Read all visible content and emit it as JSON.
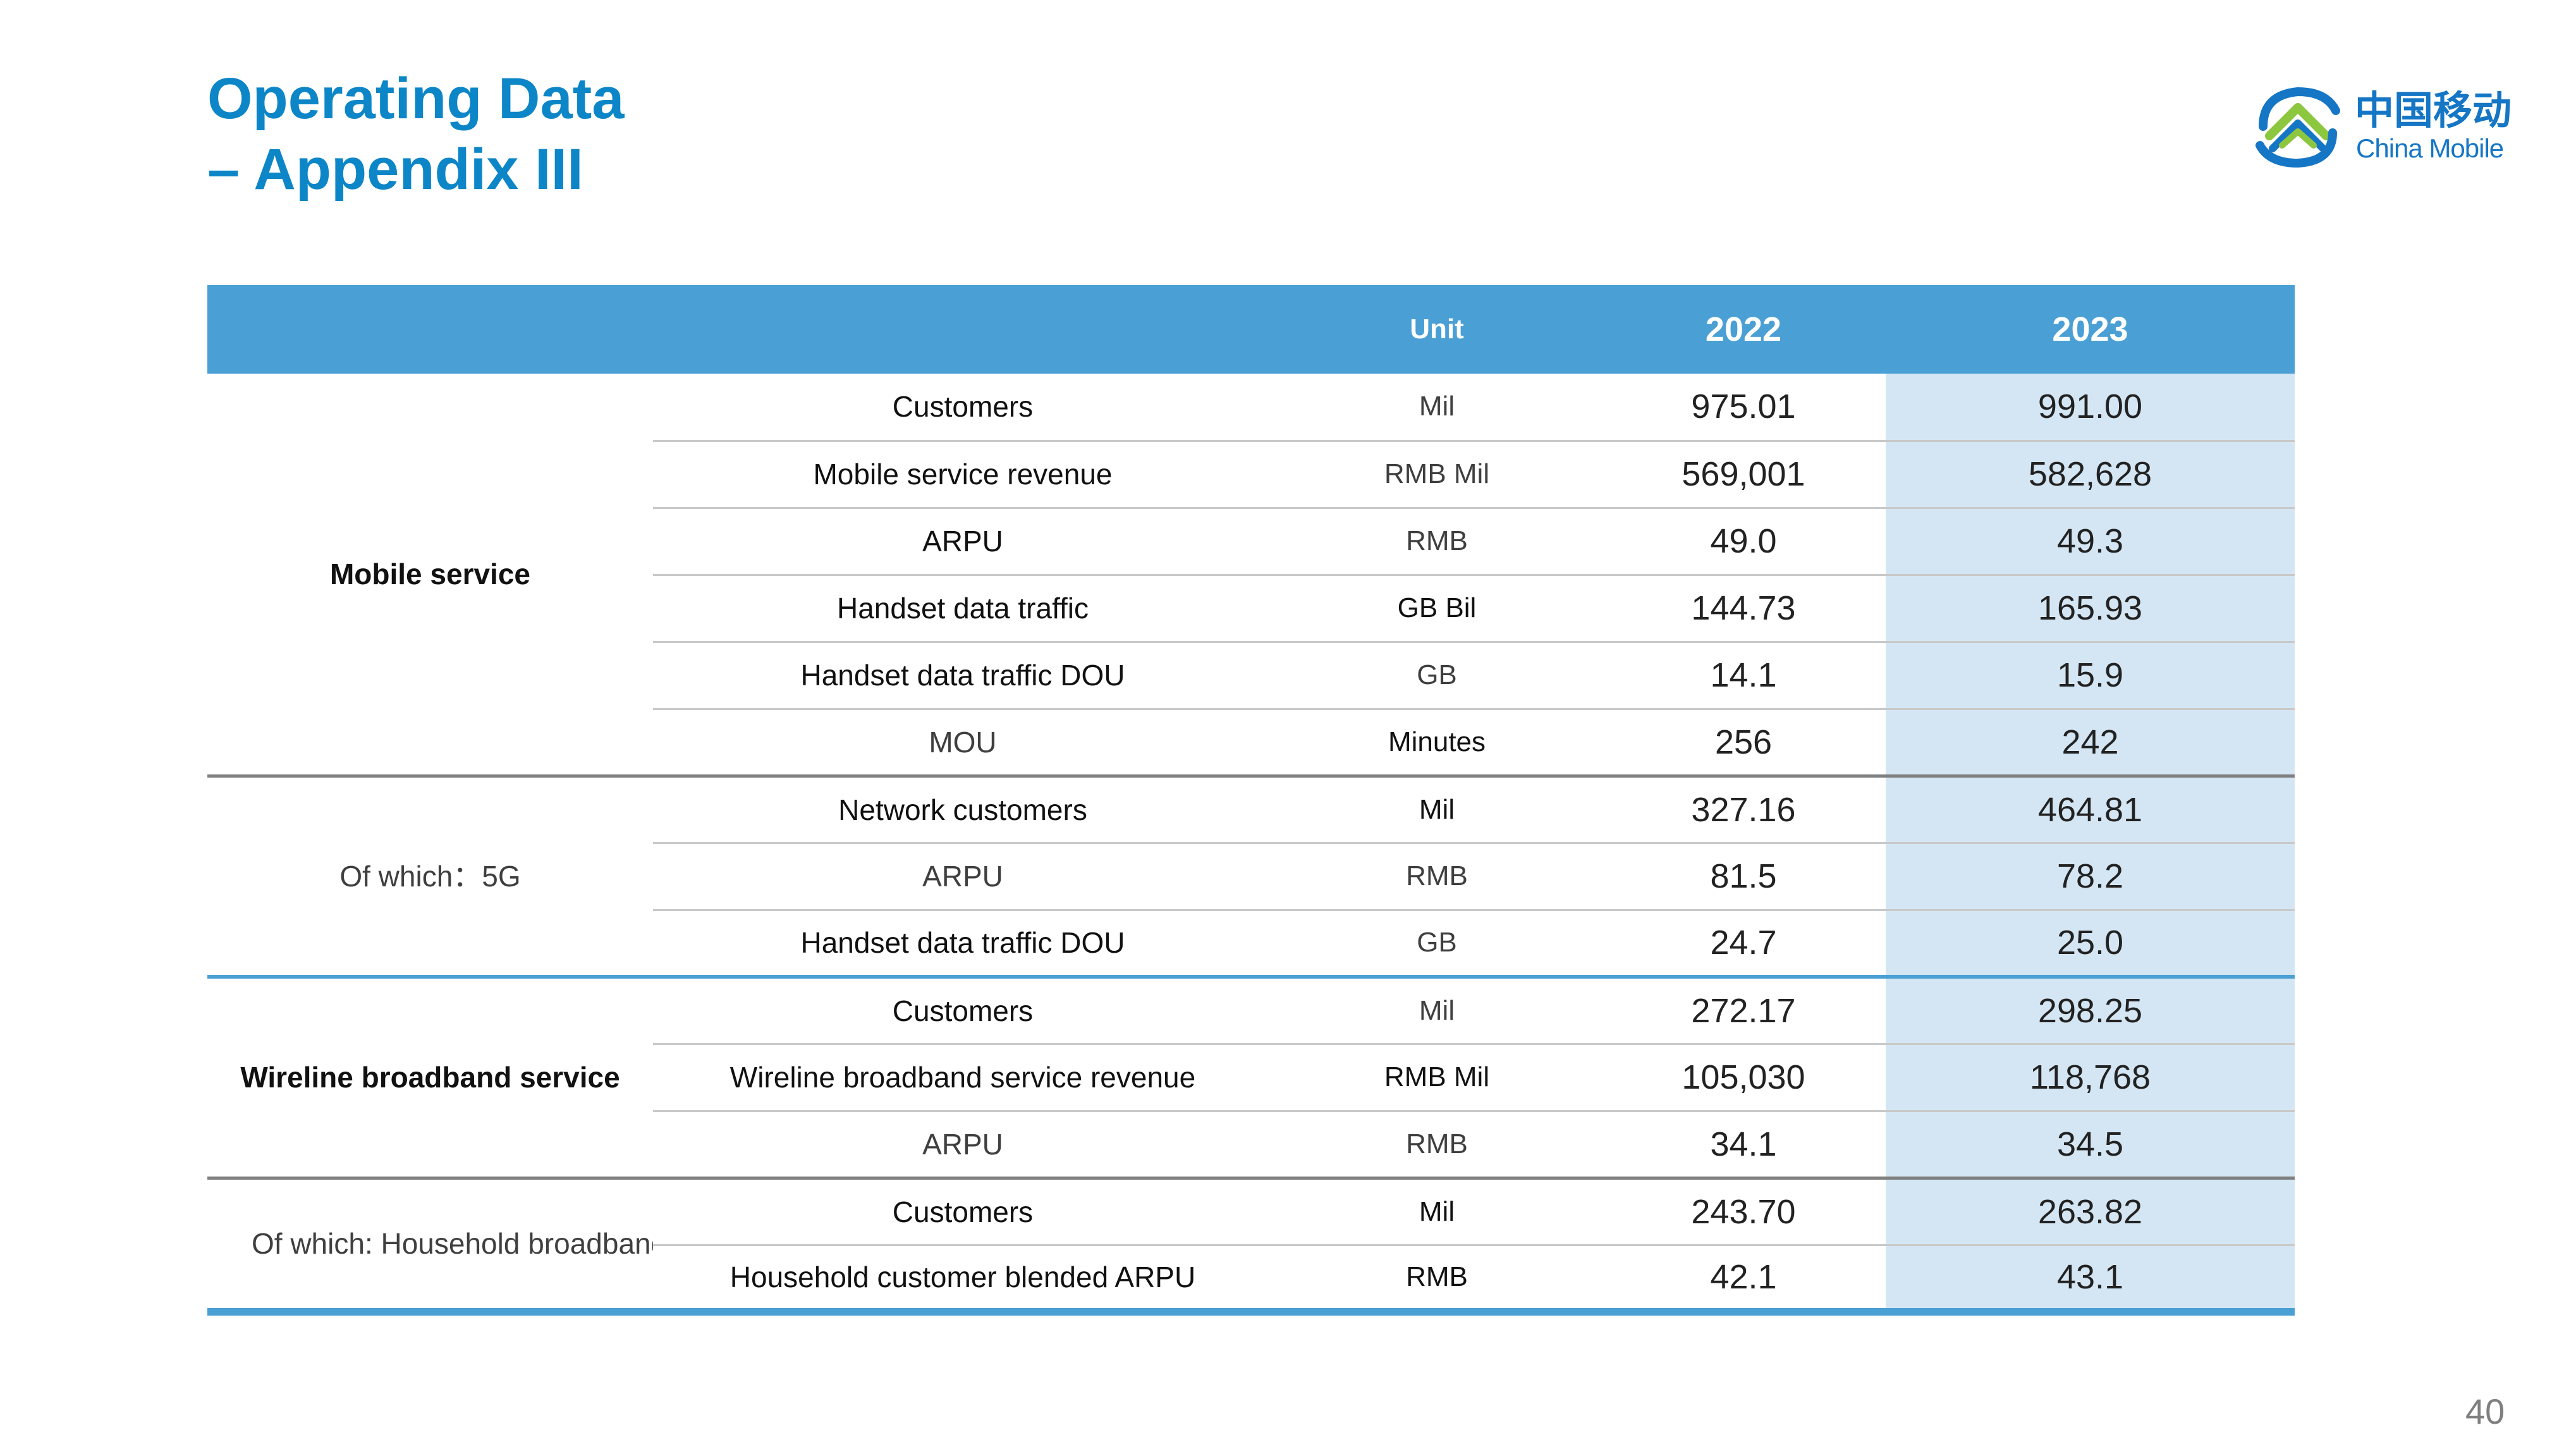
{
  "title": {
    "line1": "Operating Data",
    "line2": "– Appendix III"
  },
  "logo": {
    "cn": "中国移动",
    "en": "China Mobile",
    "colors": {
      "blue": "#1576C5",
      "green": "#8DC63F"
    }
  },
  "table": {
    "headers": {
      "unit": "Unit",
      "y2022": "2022",
      "y2023": "2023"
    },
    "groups": {
      "mobile": "Mobile service",
      "fiveg": "Of which：5G",
      "wireline": "Wireline broadband service",
      "household": "Of which: Household broadband"
    },
    "rows": [
      {
        "metric": "Customers",
        "unit": "Mil",
        "y2022": "975.01",
        "y2023": "991.00"
      },
      {
        "metric": "Mobile service revenue",
        "unit": "RMB Mil",
        "y2022": "569,001",
        "y2023": "582,628"
      },
      {
        "metric": "ARPU",
        "unit": "RMB",
        "y2022": "49.0",
        "y2023": "49.3"
      },
      {
        "metric": "Handset data traffic",
        "unit": "GB Bil",
        "y2022": "144.73",
        "y2023": "165.93"
      },
      {
        "metric": "Handset data traffic DOU",
        "unit": "GB",
        "y2022": "14.1",
        "y2023": "15.9"
      },
      {
        "metric": "MOU",
        "unit": "Minutes",
        "y2022": "256",
        "y2023": "242"
      },
      {
        "metric": "Network customers",
        "unit": "Mil",
        "y2022": "327.16",
        "y2023": "464.81"
      },
      {
        "metric": "ARPU",
        "unit": "RMB",
        "y2022": "81.5",
        "y2023": "78.2"
      },
      {
        "metric": "Handset data traffic DOU",
        "unit": "GB",
        "y2022": "24.7",
        "y2023": "25.0"
      },
      {
        "metric": "Customers",
        "unit": "Mil",
        "y2022": "272.17",
        "y2023": "298.25"
      },
      {
        "metric": "Wireline broadband service revenue",
        "unit": "RMB Mil",
        "y2022": "105,030",
        "y2023": "118,768"
      },
      {
        "metric": "ARPU",
        "unit": "RMB",
        "y2022": "34.1",
        "y2023": "34.5"
      },
      {
        "metric": "Customers",
        "unit": "Mil",
        "y2022": "243.70",
        "y2023": "263.82"
      },
      {
        "metric": "Household customer blended ARPU",
        "unit": "RMB",
        "y2022": "42.1",
        "y2023": "43.1"
      }
    ]
  },
  "page_number": "40",
  "colors": {
    "title": "#0D86C8",
    "header_bg": "#4A9FD5",
    "highlight_col": "#D4E6F3"
  }
}
